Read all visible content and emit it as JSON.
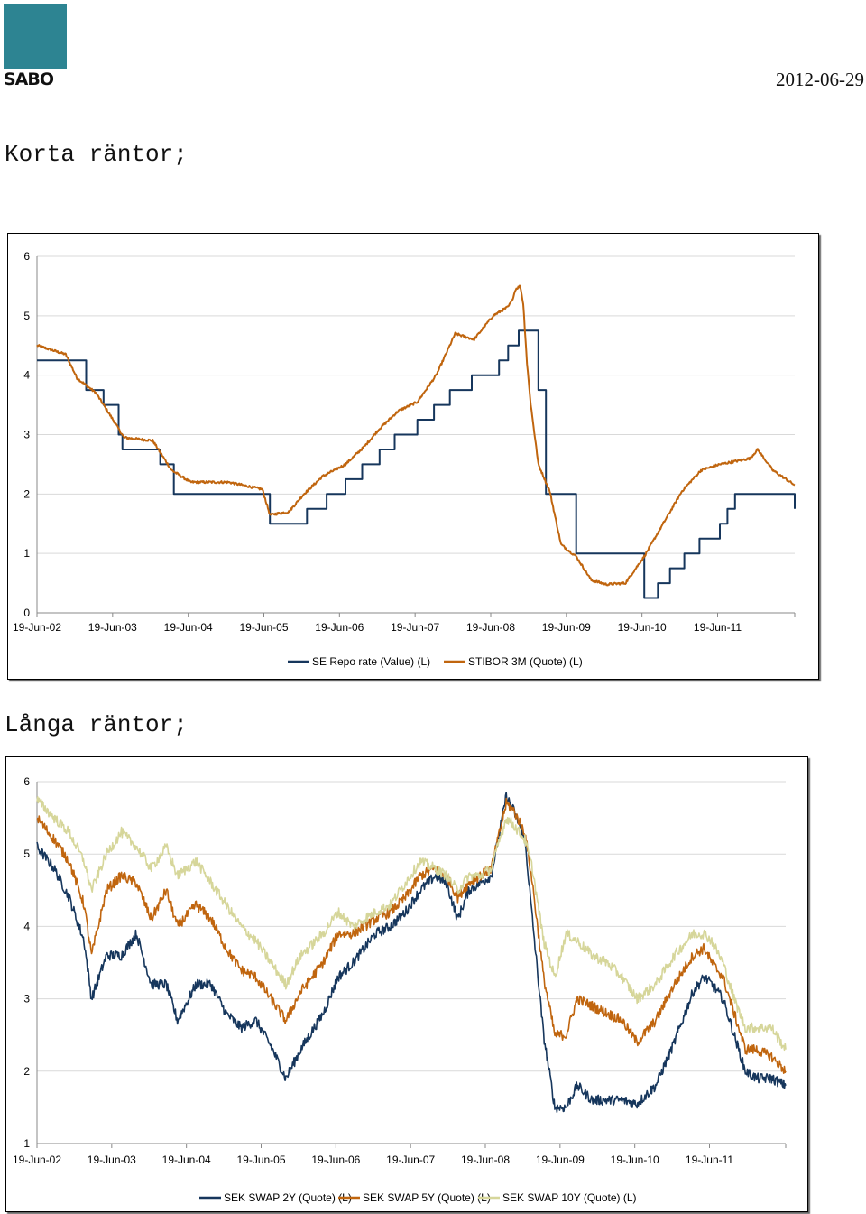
{
  "header": {
    "logo_text": "SABO",
    "date": "2012-06-29"
  },
  "colors": {
    "logo_square": "#2d8492",
    "repo": "#16365c",
    "stibor": "#c0650e",
    "swap2y": "#16365c",
    "swap5y": "#c0650e",
    "swap10y": "#d6d69a",
    "gridline": "#d9d9d9"
  },
  "sections": {
    "short_title": "Korta räntor;",
    "long_title": "Långa räntor;"
  },
  "chart_data": [
    {
      "type": "line",
      "title": "Korta räntor;",
      "x_tick_labels": [
        "19-Jun-02",
        "19-Jun-03",
        "19-Jun-04",
        "19-Jun-05",
        "19-Jun-06",
        "19-Jun-07",
        "19-Jun-08",
        "19-Jun-09",
        "19-Jun-10",
        "19-Jun-11"
      ],
      "xlim": [
        2002.47,
        2012.49
      ],
      "ylim": [
        0,
        6
      ],
      "y_ticks": [
        "0",
        "1",
        "2",
        "3",
        "4",
        "5",
        "6"
      ],
      "grid": "horizontal",
      "legend": "bottom-center",
      "series": [
        {
          "name": "SE Repo rate (Value) (L)",
          "color": "#16365c",
          "step": true,
          "x": [
            2002.47,
            2002.9,
            2003.12,
            2003.35,
            2003.55,
            2003.6,
            2004.1,
            2004.28,
            2005.55,
            2006.04,
            2006.3,
            2006.55,
            2006.77,
            2007.0,
            2007.2,
            2007.5,
            2007.72,
            2007.93,
            2008.22,
            2008.58,
            2008.7,
            2008.84,
            2008.88,
            2009.1,
            2009.2,
            2009.6,
            2010.5,
            2010.68,
            2010.84,
            2011.03,
            2011.23,
            2011.5,
            2011.6,
            2011.7,
            2011.79,
            2011.9,
            2012.49
          ],
          "y": [
            4.25,
            4.25,
            3.75,
            3.5,
            3.0,
            2.75,
            2.5,
            2.0,
            1.5,
            1.75,
            2.0,
            2.25,
            2.5,
            2.75,
            3.0,
            3.25,
            3.5,
            3.75,
            4.0,
            4.25,
            4.5,
            4.75,
            4.75,
            3.75,
            2.0,
            1.0,
            0.25,
            0.5,
            0.75,
            1.0,
            1.25,
            1.5,
            1.75,
            2.0,
            2.0,
            2.0,
            1.75
          ]
        },
        {
          "name": "STIBOR 3M (Quote) (L)",
          "color": "#c0650e",
          "x": [
            2002.47,
            2002.6,
            2002.85,
            2003.0,
            2003.25,
            2003.5,
            2003.62,
            2004.0,
            2004.25,
            2004.5,
            2005.0,
            2005.45,
            2005.55,
            2005.8,
            2006.0,
            2006.25,
            2006.55,
            2006.8,
            2007.0,
            2007.25,
            2007.5,
            2007.75,
            2008.0,
            2008.25,
            2008.5,
            2008.7,
            2008.75,
            2008.8,
            2008.86,
            2008.9,
            2008.95,
            2009.0,
            2009.1,
            2009.25,
            2009.4,
            2009.6,
            2009.8,
            2010.0,
            2010.25,
            2010.5,
            2010.75,
            2011.0,
            2011.25,
            2011.5,
            2011.7,
            2011.9,
            2012.0,
            2012.2,
            2012.49
          ],
          "y": [
            4.5,
            4.45,
            4.35,
            3.95,
            3.7,
            3.2,
            2.95,
            2.9,
            2.4,
            2.2,
            2.2,
            2.08,
            1.65,
            1.7,
            2.0,
            2.3,
            2.5,
            2.8,
            3.1,
            3.4,
            3.55,
            4.0,
            4.7,
            4.6,
            5.0,
            5.15,
            5.25,
            5.45,
            5.5,
            5.2,
            4.2,
            3.5,
            2.5,
            2.05,
            1.15,
            0.95,
            0.55,
            0.48,
            0.5,
            0.95,
            1.5,
            2.05,
            2.4,
            2.5,
            2.55,
            2.6,
            2.75,
            2.4,
            2.15
          ]
        }
      ]
    },
    {
      "type": "line",
      "title": "Långa räntor;",
      "x_tick_labels": [
        "19-Jun-02",
        "19-Jun-03",
        "19-Jun-04",
        "19-Jun-05",
        "19-Jun-06",
        "19-Jun-07",
        "19-Jun-08",
        "19-Jun-09",
        "19-Jun-10",
        "19-Jun-11"
      ],
      "xlim": [
        2002.47,
        2012.49
      ],
      "ylim": [
        1,
        6
      ],
      "y_ticks": [
        "1",
        "2",
        "3",
        "4",
        "5",
        "6"
      ],
      "grid": "horizontal",
      "legend": "bottom-center",
      "series": [
        {
          "name": "SEK SWAP 2Y (Quote) (L)",
          "color": "#16365c",
          "x": [
            2002.47,
            2002.7,
            2002.9,
            2003.1,
            2003.2,
            2003.4,
            2003.6,
            2003.8,
            2004.0,
            2004.2,
            2004.35,
            2004.6,
            2004.8,
            2005.0,
            2005.2,
            2005.4,
            2005.6,
            2005.8,
            2006.0,
            2006.3,
            2006.5,
            2006.7,
            2007.0,
            2007.2,
            2007.4,
            2007.6,
            2007.8,
            2007.95,
            2008.1,
            2008.25,
            2008.4,
            2008.55,
            2008.75,
            2008.85,
            2009.0,
            2009.1,
            2009.25,
            2009.4,
            2009.55,
            2009.7,
            2009.9,
            2010.1,
            2010.3,
            2010.5,
            2010.75,
            2011.0,
            2011.25,
            2011.4,
            2011.5,
            2011.65,
            2011.8,
            2011.95,
            2012.1,
            2012.3,
            2012.49
          ],
          "y": [
            5.1,
            4.8,
            4.4,
            3.8,
            3.0,
            3.6,
            3.6,
            3.9,
            3.2,
            3.2,
            2.7,
            3.2,
            3.2,
            2.8,
            2.6,
            2.7,
            2.35,
            1.9,
            2.3,
            2.8,
            3.3,
            3.5,
            3.9,
            4.0,
            4.2,
            4.5,
            4.7,
            4.6,
            4.1,
            4.5,
            4.6,
            4.7,
            5.8,
            5.6,
            5.2,
            4.1,
            2.5,
            1.5,
            1.5,
            1.8,
            1.6,
            1.6,
            1.6,
            1.55,
            1.8,
            2.4,
            3.1,
            3.3,
            3.2,
            3.0,
            2.5,
            2.0,
            1.9,
            1.9,
            1.8
          ]
        },
        {
          "name": "SEK SWAP 5Y (Quote) (L)",
          "color": "#c0650e",
          "x": [
            2002.47,
            2002.7,
            2002.9,
            2003.1,
            2003.2,
            2003.4,
            2003.6,
            2003.8,
            2004.0,
            2004.2,
            2004.35,
            2004.6,
            2004.8,
            2005.0,
            2005.2,
            2005.4,
            2005.6,
            2005.8,
            2006.0,
            2006.3,
            2006.5,
            2006.7,
            2007.0,
            2007.2,
            2007.4,
            2007.6,
            2007.8,
            2007.95,
            2008.1,
            2008.25,
            2008.4,
            2008.55,
            2008.75,
            2008.85,
            2009.0,
            2009.1,
            2009.25,
            2009.4,
            2009.55,
            2009.7,
            2009.9,
            2010.1,
            2010.3,
            2010.5,
            2010.75,
            2011.0,
            2011.25,
            2011.4,
            2011.5,
            2011.65,
            2011.8,
            2011.95,
            2012.1,
            2012.3,
            2012.49
          ],
          "y": [
            5.5,
            5.2,
            4.9,
            4.3,
            3.6,
            4.5,
            4.7,
            4.6,
            4.1,
            4.5,
            4.0,
            4.3,
            4.1,
            3.7,
            3.4,
            3.3,
            3.0,
            2.7,
            3.1,
            3.5,
            3.9,
            3.9,
            4.1,
            4.2,
            4.4,
            4.7,
            4.8,
            4.7,
            4.4,
            4.6,
            4.7,
            4.8,
            5.7,
            5.6,
            5.3,
            4.6,
            3.3,
            2.5,
            2.5,
            3.0,
            2.9,
            2.8,
            2.7,
            2.4,
            2.7,
            3.2,
            3.6,
            3.7,
            3.5,
            3.3,
            2.8,
            2.3,
            2.3,
            2.2,
            2.0
          ]
        },
        {
          "name": "SEK SWAP 10Y (Quote) (L)",
          "color": "#d6d69a",
          "x": [
            2002.47,
            2002.7,
            2002.9,
            2003.1,
            2003.2,
            2003.4,
            2003.6,
            2003.8,
            2004.0,
            2004.2,
            2004.35,
            2004.6,
            2004.8,
            2005.0,
            2005.2,
            2005.4,
            2005.6,
            2005.8,
            2006.0,
            2006.3,
            2006.5,
            2006.7,
            2007.0,
            2007.2,
            2007.4,
            2007.6,
            2007.8,
            2007.95,
            2008.1,
            2008.25,
            2008.4,
            2008.55,
            2008.75,
            2008.85,
            2009.0,
            2009.1,
            2009.25,
            2009.4,
            2009.55,
            2009.7,
            2009.9,
            2010.1,
            2010.3,
            2010.5,
            2010.75,
            2011.0,
            2011.25,
            2011.4,
            2011.5,
            2011.65,
            2011.8,
            2011.95,
            2012.1,
            2012.3,
            2012.49
          ],
          "y": [
            5.75,
            5.5,
            5.3,
            4.9,
            4.5,
            5.0,
            5.3,
            5.1,
            4.8,
            5.1,
            4.7,
            4.9,
            4.6,
            4.3,
            4.0,
            3.8,
            3.5,
            3.2,
            3.6,
            3.9,
            4.2,
            4.0,
            4.2,
            4.3,
            4.6,
            4.9,
            4.8,
            4.7,
            4.5,
            4.7,
            4.7,
            4.8,
            5.5,
            5.4,
            5.2,
            4.8,
            3.8,
            3.3,
            3.9,
            3.8,
            3.6,
            3.5,
            3.3,
            3.0,
            3.2,
            3.6,
            3.9,
            3.9,
            3.8,
            3.5,
            3.0,
            2.6,
            2.6,
            2.6,
            2.3
          ]
        }
      ]
    }
  ]
}
